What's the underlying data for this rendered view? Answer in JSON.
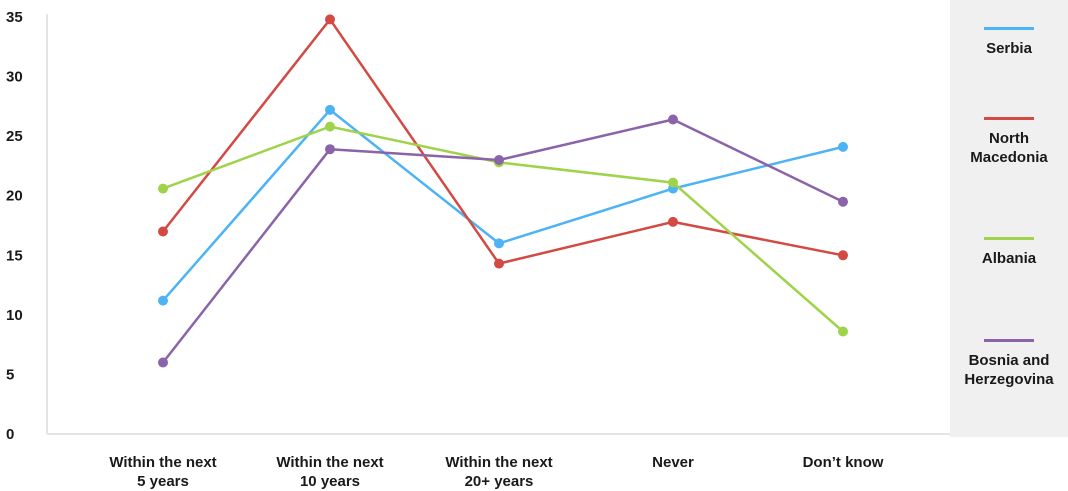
{
  "chart_data": {
    "type": "line",
    "categories": [
      [
        "Within the next",
        "5 years"
      ],
      [
        "Within the next",
        "10 years"
      ],
      [
        "Within the next",
        "20+ years"
      ],
      [
        "Never"
      ],
      [
        "Don’t know"
      ]
    ],
    "ylim": [
      0,
      35
    ],
    "yticks": [
      "0",
      "5",
      "10",
      "15",
      "20",
      "25",
      "30",
      "35"
    ],
    "grid": false,
    "legend_position": "right",
    "series": [
      {
        "name": "Serbia",
        "color": "#4db3f5",
        "values": [
          11.2,
          27.2,
          16.0,
          20.6,
          24.1
        ]
      },
      {
        "name": "North Macedonia",
        "color": "#d24a43",
        "values": [
          17.0,
          34.8,
          14.3,
          17.8,
          15.0
        ]
      },
      {
        "name": "Albania",
        "color": "#9fd34a",
        "values": [
          20.6,
          25.8,
          22.8,
          21.1,
          8.6
        ]
      },
      {
        "name": "Bosnia and Herzegovina",
        "color": "#8a63a8",
        "values": [
          6.0,
          23.9,
          23.0,
          26.4,
          19.5
        ]
      }
    ],
    "legend_labels": [
      [
        "Serbia"
      ],
      [
        "North",
        "Macedonia"
      ],
      [
        "Albania"
      ],
      [
        "Bosnia and",
        "Herzegovina"
      ]
    ]
  }
}
